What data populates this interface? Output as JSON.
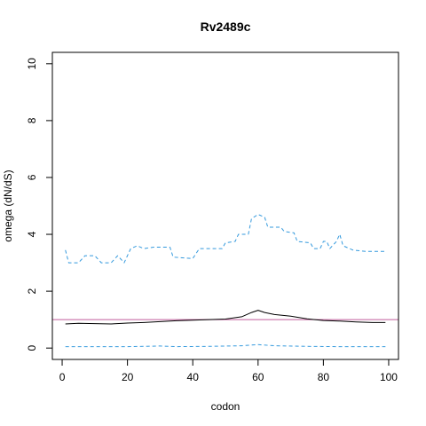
{
  "chart_data": {
    "type": "line",
    "title": "Rv2489c",
    "xlabel": "codon",
    "ylabel": "omega (dN/dS)",
    "xlim": [
      -3,
      103
    ],
    "ylim": [
      -0.4,
      10.4
    ],
    "x_ticks": [
      0,
      20,
      40,
      60,
      80,
      100
    ],
    "y_ticks": [
      0,
      2,
      4,
      6,
      8,
      10
    ],
    "grid": false,
    "reference_line": {
      "y": 1,
      "color": "#c05a9a"
    },
    "series": [
      {
        "role": "estimate",
        "color": "#000000",
        "style": "solid",
        "points": [
          [
            1,
            0.85
          ],
          [
            5,
            0.87
          ],
          [
            10,
            0.86
          ],
          [
            15,
            0.85
          ],
          [
            20,
            0.88
          ],
          [
            25,
            0.9
          ],
          [
            30,
            0.93
          ],
          [
            35,
            0.96
          ],
          [
            40,
            0.98
          ],
          [
            45,
            1.0
          ],
          [
            50,
            1.02
          ],
          [
            55,
            1.1
          ],
          [
            58,
            1.25
          ],
          [
            60,
            1.33
          ],
          [
            62,
            1.25
          ],
          [
            65,
            1.18
          ],
          [
            70,
            1.12
          ],
          [
            75,
            1.03
          ],
          [
            80,
            0.97
          ],
          [
            85,
            0.95
          ],
          [
            90,
            0.92
          ],
          [
            95,
            0.9
          ],
          [
            99,
            0.9
          ]
        ]
      },
      {
        "role": "upper",
        "color": "#3399dd",
        "style": "dashed",
        "points": [
          [
            1,
            3.45
          ],
          [
            2,
            3.0
          ],
          [
            5,
            3.0
          ],
          [
            7,
            3.25
          ],
          [
            10,
            3.25
          ],
          [
            12,
            3.0
          ],
          [
            15,
            3.0
          ],
          [
            17,
            3.25
          ],
          [
            19,
            3.0
          ],
          [
            21,
            3.5
          ],
          [
            23,
            3.6
          ],
          [
            25,
            3.5
          ],
          [
            28,
            3.55
          ],
          [
            33,
            3.55
          ],
          [
            34,
            3.2
          ],
          [
            40,
            3.15
          ],
          [
            42,
            3.5
          ],
          [
            49,
            3.5
          ],
          [
            50,
            3.7
          ],
          [
            53,
            3.75
          ],
          [
            54,
            4.0
          ],
          [
            57,
            4.0
          ],
          [
            58,
            4.55
          ],
          [
            60,
            4.7
          ],
          [
            62,
            4.6
          ],
          [
            63,
            4.25
          ],
          [
            67,
            4.25
          ],
          [
            68,
            4.1
          ],
          [
            71,
            4.05
          ],
          [
            72,
            3.75
          ],
          [
            76,
            3.7
          ],
          [
            77,
            3.5
          ],
          [
            79,
            3.5
          ],
          [
            80,
            3.75
          ],
          [
            81,
            3.75
          ],
          [
            82,
            3.5
          ],
          [
            84,
            3.75
          ],
          [
            85,
            4.0
          ],
          [
            86,
            3.6
          ],
          [
            89,
            3.45
          ],
          [
            93,
            3.4
          ],
          [
            99,
            3.4
          ]
        ]
      },
      {
        "role": "lower",
        "color": "#3399dd",
        "style": "dashed",
        "points": [
          [
            1,
            0.05
          ],
          [
            10,
            0.05
          ],
          [
            20,
            0.05
          ],
          [
            30,
            0.07
          ],
          [
            35,
            0.05
          ],
          [
            45,
            0.06
          ],
          [
            55,
            0.08
          ],
          [
            60,
            0.12
          ],
          [
            65,
            0.08
          ],
          [
            75,
            0.06
          ],
          [
            85,
            0.05
          ],
          [
            99,
            0.05
          ]
        ]
      }
    ]
  }
}
